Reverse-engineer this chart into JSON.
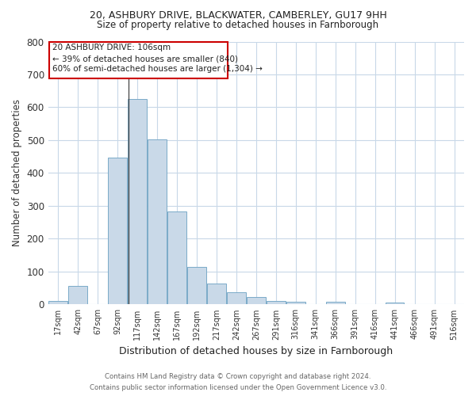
{
  "title_line1": "20, ASHBURY DRIVE, BLACKWATER, CAMBERLEY, GU17 9HH",
  "title_line2": "Size of property relative to detached houses in Farnborough",
  "xlabel": "Distribution of detached houses by size in Farnborough",
  "ylabel": "Number of detached properties",
  "footer_line1": "Contains HM Land Registry data © Crown copyright and database right 2024.",
  "footer_line2": "Contains public sector information licensed under the Open Government Licence v3.0.",
  "bin_labels": [
    "17sqm",
    "42sqm",
    "67sqm",
    "92sqm",
    "117sqm",
    "142sqm",
    "167sqm",
    "192sqm",
    "217sqm",
    "242sqm",
    "267sqm",
    "291sqm",
    "316sqm",
    "341sqm",
    "366sqm",
    "391sqm",
    "416sqm",
    "441sqm",
    "466sqm",
    "491sqm",
    "516sqm"
  ],
  "bar_values": [
    11,
    57,
    0,
    448,
    625,
    503,
    283,
    115,
    63,
    36,
    22,
    10,
    8,
    0,
    8,
    0,
    0,
    6,
    0,
    0,
    0
  ],
  "bar_color": "#c9d9e8",
  "bar_edge_color": "#7aaac8",
  "subject_bin_index": 3.56,
  "annotation_line1": "20 ASHBURY DRIVE: 106sqm",
  "annotation_line2": "← 39% of detached houses are smaller (840)",
  "annotation_line3": "60% of semi-detached houses are larger (1,304) →",
  "annotation_box_color": "#ffffff",
  "annotation_box_edge_color": "#cc0000",
  "ylim": [
    0,
    800
  ],
  "yticks": [
    0,
    100,
    200,
    300,
    400,
    500,
    600,
    700,
    800
  ],
  "grid_color": "#c8d8e8",
  "background_color": "#ffffff"
}
